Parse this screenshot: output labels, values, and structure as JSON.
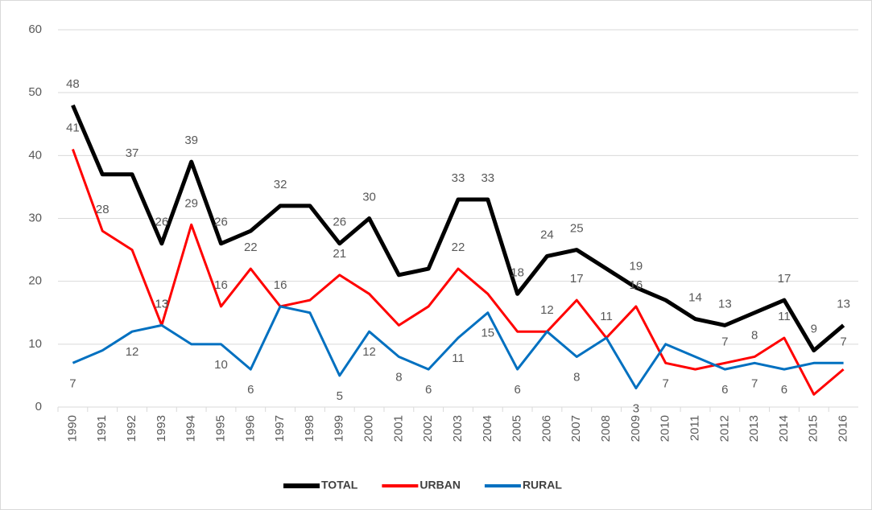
{
  "chart_data": {
    "type": "line",
    "categories": [
      "1990",
      "1991",
      "1992",
      "1993",
      "1994",
      "1995",
      "1996",
      "1997",
      "1998",
      "1999",
      "2000",
      "2001",
      "2002",
      "2003",
      "2004",
      "2005",
      "2006",
      "2007",
      "2008",
      "2009",
      "2010",
      "2011",
      "2012",
      "2013",
      "2014",
      "2015",
      "2016"
    ],
    "series": [
      {
        "name": "TOTAL",
        "color": "#000000",
        "width": 5,
        "values": [
          48,
          37,
          37,
          26,
          39,
          26,
          28,
          32,
          32,
          26,
          30,
          21,
          22,
          33,
          33,
          18,
          24,
          25,
          22,
          19,
          17,
          14,
          13,
          15,
          17,
          9,
          13
        ],
        "value_labels": [
          "48",
          null,
          "37",
          "26",
          "39",
          "26",
          null,
          "32",
          null,
          "26",
          "30",
          null,
          null,
          "33",
          "33",
          "18",
          "24",
          "25",
          null,
          "19",
          null,
          "14",
          "13",
          null,
          "17",
          "9",
          "13"
        ]
      },
      {
        "name": "URBAN",
        "color": "#ff0000",
        "width": 3,
        "values": [
          41,
          28,
          25,
          13,
          29,
          16,
          22,
          16,
          17,
          21,
          18,
          13,
          16,
          22,
          18,
          12,
          12,
          17,
          11,
          16,
          7,
          6,
          7,
          8,
          11,
          2,
          6
        ],
        "value_labels": [
          "41",
          "28",
          null,
          "13",
          "29",
          "16",
          "22",
          null,
          null,
          "21",
          null,
          null,
          null,
          "22",
          null,
          null,
          null,
          "17",
          null,
          "16",
          "7",
          null,
          "7",
          "8",
          "11",
          null,
          null
        ]
      },
      {
        "name": "RURAL",
        "color": "#0070c0",
        "width": 3,
        "values": [
          7,
          9,
          12,
          13,
          10,
          10,
          6,
          16,
          15,
          5,
          12,
          8,
          6,
          11,
          15,
          6,
          12,
          8,
          11,
          3,
          10,
          8,
          6,
          7,
          6,
          7,
          7
        ],
        "value_labels": [
          "7",
          null,
          "12",
          "13",
          null,
          "10",
          "6",
          "16",
          null,
          "5",
          "12",
          "8",
          "6",
          "11",
          "15",
          "6",
          "12",
          "8",
          "11",
          "3",
          null,
          null,
          "6",
          "7",
          "6",
          null,
          "7"
        ]
      }
    ],
    "ylim": [
      0,
      60
    ],
    "yticks": [
      0,
      10,
      20,
      30,
      40,
      50,
      60
    ],
    "grid": true,
    "legend": "bottom"
  }
}
